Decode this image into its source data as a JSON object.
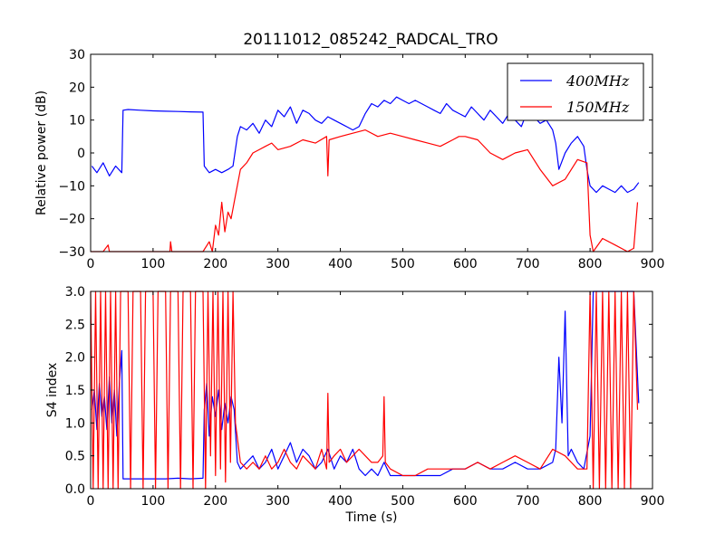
{
  "chart_data": [
    {
      "type": "line",
      "title": "20111012_085242_RADCAL_TRO",
      "xlabel": "",
      "ylabel": "Relative power (dB)",
      "xlim": [
        0,
        900
      ],
      "ylim": [
        -30,
        30
      ],
      "xticks": [
        "0",
        "100",
        "200",
        "300",
        "400",
        "500",
        "600",
        "700",
        "800",
        "900"
      ],
      "yticks": [
        "−30",
        "−20",
        "−10",
        "0",
        "10",
        "20",
        "30"
      ],
      "grid": false,
      "legend": "top-right",
      "series": [
        {
          "name": "400MHz",
          "color": "#0000ff",
          "x": [
            2,
            10,
            20,
            30,
            40,
            50,
            52,
            60,
            80,
            100,
            120,
            140,
            160,
            180,
            182,
            190,
            200,
            210,
            220,
            228,
            235,
            240,
            250,
            260,
            270,
            280,
            290,
            300,
            310,
            320,
            330,
            340,
            350,
            360,
            370,
            380,
            390,
            400,
            410,
            420,
            430,
            440,
            450,
            460,
            470,
            480,
            490,
            500,
            510,
            520,
            530,
            540,
            550,
            560,
            570,
            580,
            590,
            600,
            610,
            620,
            630,
            640,
            650,
            660,
            670,
            680,
            690,
            700,
            710,
            720,
            730,
            740,
            745,
            750,
            760,
            770,
            780,
            790,
            795,
            800,
            810,
            820,
            830,
            840,
            850,
            860,
            870,
            878
          ],
          "y": [
            -4,
            -6,
            -3,
            -7,
            -4,
            -6,
            13,
            13.2,
            13,
            12.8,
            12.7,
            12.6,
            12.5,
            12.4,
            -4,
            -6,
            -5,
            -6,
            -5,
            -4,
            5,
            8,
            7,
            9,
            6,
            10,
            8,
            13,
            11,
            14,
            9,
            13,
            12,
            10,
            9,
            11,
            10,
            9,
            8,
            7,
            8,
            12,
            15,
            14,
            16,
            15,
            17,
            16,
            15,
            16,
            15,
            14,
            13,
            12,
            15,
            13,
            12,
            11,
            14,
            12,
            10,
            13,
            11,
            9,
            12,
            10,
            8,
            13,
            11,
            9,
            10,
            7,
            3,
            -5,
            0,
            3,
            5,
            2,
            -5,
            -10,
            -12,
            -10,
            -11,
            -12,
            -10,
            -12,
            -11,
            -9
          ]
        },
        {
          "name": "150MHz",
          "color": "#ff0000",
          "x": [
            0,
            20,
            28,
            30,
            100,
            127,
            128,
            130,
            170,
            180,
            190,
            195,
            200,
            205,
            210,
            215,
            220,
            225,
            230,
            240,
            250,
            260,
            270,
            280,
            290,
            300,
            320,
            340,
            360,
            378,
            380,
            382,
            400,
            420,
            440,
            460,
            480,
            500,
            520,
            540,
            560,
            580,
            590,
            600,
            620,
            640,
            660,
            680,
            700,
            720,
            740,
            760,
            780,
            795,
            800,
            805,
            820,
            840,
            860,
            870,
            876
          ],
          "y": [
            -30,
            -30,
            -28,
            -30,
            -30,
            -30,
            -27,
            -30,
            -30,
            -30,
            -27,
            -30,
            -22,
            -25,
            -15,
            -24,
            -18,
            -20,
            -15,
            -5,
            -3,
            0,
            1,
            2,
            3,
            1,
            2,
            4,
            3,
            5,
            -7,
            4,
            5,
            6,
            7,
            5,
            6,
            5,
            4,
            3,
            2,
            4,
            5,
            5,
            4,
            0,
            -2,
            0,
            1,
            -5,
            -10,
            -8,
            -2,
            -3,
            -25,
            -30,
            -26,
            -28,
            -30,
            -29,
            -15
          ]
        }
      ]
    },
    {
      "type": "line",
      "title": "",
      "xlabel": "Time (s)",
      "ylabel": "S4 index",
      "xlim": [
        0,
        900
      ],
      "ylim": [
        0,
        3
      ],
      "xticks": [
        "0",
        "100",
        "200",
        "300",
        "400",
        "500",
        "600",
        "700",
        "800",
        "900"
      ],
      "yticks": [
        "0.0",
        "0.5",
        "1.0",
        "1.5",
        "2.0",
        "2.5",
        "3.0"
      ],
      "grid": false,
      "legend": "none",
      "series": [
        {
          "name": "",
          "color": "#0000ff",
          "x": [
            2,
            6,
            10,
            14,
            18,
            22,
            26,
            30,
            34,
            38,
            42,
            46,
            50,
            52,
            60,
            80,
            100,
            120,
            140,
            160,
            180,
            182,
            186,
            190,
            195,
            200,
            205,
            210,
            215,
            220,
            225,
            230,
            235,
            240,
            250,
            260,
            270,
            280,
            290,
            300,
            310,
            320,
            330,
            340,
            350,
            360,
            370,
            380,
            390,
            400,
            410,
            420,
            430,
            440,
            450,
            460,
            470,
            480,
            490,
            500,
            520,
            540,
            560,
            580,
            600,
            620,
            640,
            660,
            680,
            700,
            720,
            740,
            745,
            750,
            755,
            760,
            765,
            770,
            780,
            790,
            800,
            805,
            810,
            820,
            830,
            840,
            850,
            860,
            870,
            878
          ],
          "y": [
            1.2,
            1.5,
            0.9,
            1.6,
            1.1,
            1.4,
            0.9,
            1.7,
            1.0,
            1.5,
            0.8,
            1.6,
            2.1,
            0.15,
            0.15,
            0.15,
            0.15,
            0.15,
            0.16,
            0.15,
            0.16,
            1.2,
            1.6,
            0.8,
            1.4,
            1.1,
            1.5,
            0.9,
            1.3,
            1.0,
            1.4,
            1.2,
            0.4,
            0.3,
            0.4,
            0.5,
            0.3,
            0.4,
            0.6,
            0.3,
            0.5,
            0.7,
            0.4,
            0.6,
            0.5,
            0.3,
            0.4,
            0.6,
            0.3,
            0.5,
            0.4,
            0.6,
            0.3,
            0.2,
            0.3,
            0.2,
            0.4,
            0.2,
            0.2,
            0.2,
            0.2,
            0.2,
            0.2,
            0.3,
            0.3,
            0.4,
            0.3,
            0.3,
            0.4,
            0.3,
            0.3,
            0.4,
            0.6,
            2.0,
            1.0,
            2.7,
            0.5,
            0.6,
            0.4,
            0.3,
            0.8,
            3.0,
            3.0,
            3.0,
            3.0,
            3.0,
            3.0,
            3.0,
            3.0,
            1.3
          ]
        },
        {
          "name": "",
          "color": "#ff0000",
          "x": [
            0,
            4,
            8,
            12,
            16,
            20,
            24,
            28,
            32,
            36,
            40,
            44,
            48,
            60,
            64,
            68,
            80,
            84,
            88,
            100,
            104,
            108,
            120,
            124,
            128,
            140,
            144,
            148,
            160,
            164,
            168,
            180,
            184,
            188,
            192,
            196,
            200,
            204,
            208,
            212,
            216,
            220,
            224,
            228,
            232,
            240,
            250,
            260,
            270,
            280,
            290,
            300,
            310,
            320,
            330,
            340,
            350,
            360,
            370,
            378,
            380,
            382,
            390,
            400,
            410,
            420,
            430,
            440,
            450,
            460,
            468,
            470,
            472,
            480,
            500,
            520,
            540,
            560,
            580,
            600,
            620,
            640,
            660,
            680,
            700,
            720,
            740,
            760,
            780,
            795,
            800,
            805,
            810,
            815,
            820,
            825,
            830,
            835,
            840,
            845,
            850,
            855,
            860,
            865,
            870,
            876
          ],
          "y": [
            3.0,
            0.0,
            3.0,
            0.0,
            3.0,
            0.0,
            3.0,
            0.0,
            3.0,
            0.0,
            3.0,
            0.0,
            3.0,
            3.0,
            0.0,
            3.0,
            3.0,
            0.0,
            3.0,
            3.0,
            0.0,
            3.0,
            3.0,
            0.0,
            3.0,
            3.0,
            0.0,
            3.0,
            3.0,
            0.0,
            3.0,
            3.0,
            0.0,
            3.0,
            0.5,
            3.0,
            0.2,
            3.0,
            0.3,
            3.0,
            0.1,
            3.0,
            0.4,
            3.0,
            1.0,
            0.4,
            0.3,
            0.4,
            0.3,
            0.5,
            0.3,
            0.4,
            0.6,
            0.4,
            0.3,
            0.5,
            0.4,
            0.3,
            0.6,
            0.3,
            1.45,
            0.4,
            0.5,
            0.6,
            0.4,
            0.5,
            0.6,
            0.5,
            0.4,
            0.4,
            0.5,
            1.4,
            0.4,
            0.3,
            0.2,
            0.2,
            0.3,
            0.3,
            0.3,
            0.3,
            0.4,
            0.3,
            0.4,
            0.5,
            0.4,
            0.3,
            0.6,
            0.5,
            0.3,
            0.3,
            3.0,
            0.0,
            3.0,
            0.0,
            3.0,
            0.0,
            3.0,
            0.0,
            3.0,
            0.0,
            3.0,
            0.0,
            3.0,
            0.0,
            3.0,
            1.2
          ]
        }
      ]
    }
  ]
}
